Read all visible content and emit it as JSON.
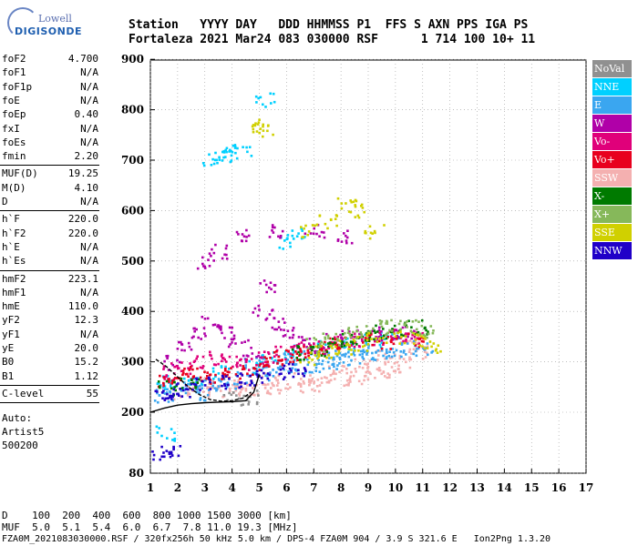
{
  "logo": {
    "brand": "Lowell",
    "product": "DIGISONDE"
  },
  "header": {
    "line1": "Station   YYYY DAY   DDD HHMMSS P1  FFS S AXN PPS IGA PS",
    "line2": "Fortaleza 2021 Mar24 083 030000 RSF      1 714 100 10+ 11"
  },
  "params_group1": [
    {
      "name": "foF2",
      "value": "4.700"
    },
    {
      "name": "foF1",
      "value": "N/A"
    },
    {
      "name": "foF1p",
      "value": "N/A"
    },
    {
      "name": "foE",
      "value": "N/A"
    },
    {
      "name": "foEp",
      "value": "0.40"
    },
    {
      "name": "fxI",
      "value": "N/A"
    },
    {
      "name": "foEs",
      "value": "N/A"
    },
    {
      "name": "fmin",
      "value": "2.20"
    }
  ],
  "params_group2": [
    {
      "name": "MUF(D)",
      "value": "19.25"
    },
    {
      "name": "M(D)",
      "value": "4.10"
    },
    {
      "name": "D",
      "value": "N/A"
    }
  ],
  "params_group3": [
    {
      "name": "h`F",
      "value": "220.0"
    },
    {
      "name": "h`F2",
      "value": "220.0"
    },
    {
      "name": "h`E",
      "value": "N/A"
    },
    {
      "name": "h`Es",
      "value": "N/A"
    }
  ],
  "params_group4": [
    {
      "name": "hmF2",
      "value": "223.1"
    },
    {
      "name": "hmF1",
      "value": "N/A"
    },
    {
      "name": "hmE",
      "value": "110.0"
    },
    {
      "name": "yF2",
      "value": "12.3"
    },
    {
      "name": "yF1",
      "value": "N/A"
    },
    {
      "name": "yE",
      "value": "20.0"
    },
    {
      "name": "B0",
      "value": "15.2"
    },
    {
      "name": "B1",
      "value": "1.12"
    }
  ],
  "params_group5": [
    {
      "name": "C-level",
      "value": "55"
    }
  ],
  "autoscaling": {
    "line1": "Auto:",
    "line2": "Artist5",
    "line3": "500200"
  },
  "legend": [
    {
      "label": "NoVal",
      "color": "#909090"
    },
    {
      "label": "NNE",
      "color": "#00d0ff"
    },
    {
      "label": "E",
      "color": "#3aa6f0"
    },
    {
      "label": "W",
      "color": "#b000a8"
    },
    {
      "label": "Vo-",
      "color": "#e0007a"
    },
    {
      "label": "Vo+",
      "color": "#e8001e"
    },
    {
      "label": "SSW",
      "color": "#f4b0b0"
    },
    {
      "label": "X-",
      "color": "#007a00"
    },
    {
      "label": "X+",
      "color": "#86b85a"
    },
    {
      "label": "SSE",
      "color": "#d0d000"
    },
    {
      "label": "NNW",
      "color": "#2000c8"
    }
  ],
  "footer": {
    "d_line": "D    100  200  400  600  800 1000 1500 3000 [km]",
    "muf_line": "MUF  5.0  5.1  5.4  6.0  6.7  7.8 11.0 19.3 [MHz]",
    "file_line": "FZA0M_2021083030000.RSF / 320fx256h 50 kHz 5.0 km / DPS-4 FZA0M 904 / 3.9 S 321.6 E   Ion2Png 1.3.20"
  },
  "chart_data": {
    "type": "scatter",
    "title": "",
    "xlabel": "",
    "ylabel": "",
    "xlim": [
      1,
      17
    ],
    "ylim": [
      80,
      900
    ],
    "x_ticks": [
      "1",
      "2",
      "3",
      "4",
      "5",
      "6",
      "7",
      "8",
      "9",
      "10",
      "11",
      "12",
      "13",
      "14",
      "15",
      "16",
      "17"
    ],
    "y_ticks": [
      "80",
      "200",
      "300",
      "400",
      "500",
      "600",
      "700",
      "800",
      "900"
    ],
    "y_tick_values": [
      80,
      200,
      300,
      400,
      500,
      600,
      700,
      800,
      900
    ],
    "grid": "dotted",
    "legend_position": "right",
    "series": [
      {
        "name": "SSW",
        "color": "#f4b0b0",
        "points": [
          [
            2.2,
            240
          ],
          [
            2.8,
            245
          ],
          [
            3.5,
            245
          ],
          [
            4.0,
            246
          ],
          [
            4.5,
            248
          ],
          [
            5.0,
            250
          ],
          [
            5.6,
            252
          ],
          [
            6.2,
            255
          ],
          [
            6.8,
            258
          ],
          [
            7.4,
            262
          ],
          [
            8.0,
            268
          ],
          [
            8.5,
            272
          ],
          [
            9.0,
            278
          ],
          [
            9.4,
            285
          ],
          [
            9.8,
            290
          ],
          [
            10.2,
            300
          ],
          [
            10.4,
            330
          ],
          [
            10.6,
            345
          ],
          [
            10.8,
            320
          ],
          [
            9.6,
            310
          ],
          [
            8.8,
            295
          ],
          [
            7.8,
            280
          ],
          [
            6.6,
            270
          ],
          [
            5.4,
            265
          ],
          [
            4.2,
            258
          ],
          [
            3.2,
            255
          ]
        ]
      },
      {
        "name": "E",
        "color": "#3aa6f0",
        "points": [
          [
            1.5,
            250
          ],
          [
            2.0,
            252
          ],
          [
            2.6,
            255
          ],
          [
            3.2,
            258
          ],
          [
            3.8,
            262
          ],
          [
            4.4,
            268
          ],
          [
            5.0,
            280
          ],
          [
            5.5,
            288
          ],
          [
            6.0,
            292
          ],
          [
            6.5,
            290
          ],
          [
            7.0,
            295
          ],
          [
            7.5,
            300
          ],
          [
            8.0,
            305
          ],
          [
            8.5,
            310
          ],
          [
            9.0,
            312
          ],
          [
            9.5,
            318
          ],
          [
            10.0,
            322
          ],
          [
            10.5,
            325
          ],
          [
            11.0,
            330
          ],
          [
            4.8,
            300
          ],
          [
            5.8,
            305
          ],
          [
            6.8,
            310
          ],
          [
            7.8,
            320
          ],
          [
            8.8,
            330
          ],
          [
            1.5,
            232
          ],
          [
            3.0,
            240
          ]
        ]
      },
      {
        "name": "NNE",
        "color": "#00d0ff",
        "points": [
          [
            1.6,
            260
          ],
          [
            2.5,
            270
          ],
          [
            3.6,
            280
          ],
          [
            4.6,
            290
          ],
          [
            5.2,
            310
          ],
          [
            6.2,
            320
          ],
          [
            7.2,
            330
          ],
          [
            8.2,
            340
          ],
          [
            9.2,
            345
          ],
          [
            9.8,
            350
          ],
          [
            3.2,
            705
          ],
          [
            3.6,
            712
          ],
          [
            4.0,
            718
          ],
          [
            4.3,
            725
          ],
          [
            5.2,
            820
          ],
          [
            6.0,
            540
          ],
          [
            6.3,
            560
          ],
          [
            1.5,
            160
          ]
        ]
      },
      {
        "name": "W",
        "color": "#b000a8",
        "points": [
          [
            1.8,
            300
          ],
          [
            2.3,
            330
          ],
          [
            2.8,
            360
          ],
          [
            3.2,
            380
          ],
          [
            3.7,
            360
          ],
          [
            4.2,
            340
          ],
          [
            4.7,
            320
          ],
          [
            5.1,
            400
          ],
          [
            5.3,
            450
          ],
          [
            5.6,
            380
          ],
          [
            6.1,
            360
          ],
          [
            6.6,
            340
          ],
          [
            7.1,
            330
          ],
          [
            7.7,
            345
          ],
          [
            8.3,
            350
          ],
          [
            9.1,
            355
          ],
          [
            9.7,
            360
          ],
          [
            10.3,
            360
          ],
          [
            3.0,
            500
          ],
          [
            3.5,
            520
          ],
          [
            4.5,
            550
          ],
          [
            5.5,
            560
          ],
          [
            7.0,
            560
          ],
          [
            8.0,
            550
          ]
        ]
      },
      {
        "name": "Vo-",
        "color": "#e0007a",
        "points": [
          [
            1.7,
            280
          ],
          [
            2.1,
            290
          ],
          [
            2.7,
            300
          ],
          [
            3.3,
            310
          ],
          [
            3.9,
            300
          ],
          [
            4.5,
            295
          ],
          [
            5.2,
            310
          ],
          [
            5.9,
            320
          ],
          [
            6.7,
            330
          ],
          [
            7.5,
            340
          ],
          [
            8.4,
            345
          ],
          [
            9.2,
            350
          ],
          [
            10.1,
            355
          ],
          [
            10.6,
            350
          ]
        ]
      },
      {
        "name": "Vo+",
        "color": "#e8001e",
        "points": [
          [
            1.6,
            260
          ],
          [
            2.0,
            270
          ],
          [
            2.5,
            280
          ],
          [
            3.0,
            275
          ],
          [
            3.5,
            270
          ],
          [
            4.0,
            285
          ],
          [
            4.5,
            280
          ],
          [
            5.0,
            300
          ],
          [
            5.5,
            310
          ],
          [
            6.0,
            315
          ],
          [
            6.5,
            320
          ],
          [
            7.0,
            330
          ],
          [
            7.5,
            335
          ],
          [
            8.0,
            340
          ],
          [
            9.0,
            345
          ],
          [
            9.8,
            340
          ],
          [
            10.8,
            345
          ]
        ]
      },
      {
        "name": "X-",
        "color": "#007a00",
        "points": [
          [
            6.5,
            320
          ],
          [
            7.2,
            325
          ],
          [
            7.8,
            335
          ],
          [
            8.3,
            345
          ],
          [
            8.8,
            350
          ],
          [
            9.3,
            360
          ],
          [
            10.0,
            365
          ],
          [
            10.8,
            370
          ],
          [
            1.6,
            250
          ],
          [
            2.4,
            255
          ]
        ]
      },
      {
        "name": "X+",
        "color": "#86b85a",
        "points": [
          [
            7.0,
            335
          ],
          [
            7.6,
            345
          ],
          [
            8.2,
            355
          ],
          [
            8.7,
            362
          ],
          [
            9.3,
            370
          ],
          [
            9.9,
            372
          ],
          [
            10.6,
            375
          ],
          [
            11.2,
            360
          ]
        ]
      },
      {
        "name": "SSE",
        "color": "#d0d000",
        "points": [
          [
            6.8,
            310
          ],
          [
            7.4,
            320
          ],
          [
            8.0,
            330
          ],
          [
            8.6,
            338
          ],
          [
            9.2,
            345
          ],
          [
            10.0,
            350
          ],
          [
            10.8,
            345
          ],
          [
            11.3,
            330
          ],
          [
            4.9,
            770
          ],
          [
            5.1,
            760
          ],
          [
            6.8,
            560
          ],
          [
            7.5,
            580
          ],
          [
            8.2,
            620
          ],
          [
            8.5,
            600
          ],
          [
            9.2,
            560
          ]
        ]
      },
      {
        "name": "NNW",
        "color": "#2000c8",
        "points": [
          [
            1.5,
            235
          ],
          [
            1.8,
            240
          ],
          [
            2.2,
            245
          ],
          [
            2.8,
            255
          ],
          [
            3.4,
            260
          ],
          [
            4.0,
            265
          ],
          [
            4.6,
            270
          ],
          [
            5.2,
            275
          ],
          [
            5.8,
            280
          ],
          [
            6.4,
            285
          ],
          [
            1.4,
            120
          ],
          [
            1.7,
            125
          ]
        ]
      },
      {
        "name": "NoVal",
        "color": "#909090",
        "points": [
          [
            4.0,
            230
          ],
          [
            4.6,
            232
          ]
        ]
      }
    ],
    "traces": [
      {
        "name": "virtual-height-trace",
        "color": "#000000",
        "points": [
          [
            1.0,
            200
          ],
          [
            1.5,
            208
          ],
          [
            2.0,
            214
          ],
          [
            2.5,
            217
          ],
          [
            3.0,
            219
          ],
          [
            3.5,
            220
          ],
          [
            4.0,
            221
          ],
          [
            4.5,
            223
          ],
          [
            4.8,
            240
          ],
          [
            5.0,
            275
          ]
        ]
      },
      {
        "name": "lower-trace",
        "color": "#000000",
        "points": [
          [
            1.2,
            305
          ],
          [
            1.6,
            290
          ],
          [
            2.0,
            270
          ],
          [
            2.4,
            250
          ],
          [
            2.8,
            235
          ],
          [
            3.2,
            225
          ],
          [
            3.6,
            222
          ],
          [
            4.0,
            223
          ],
          [
            4.4,
            228
          ],
          [
            4.7,
            240
          ]
        ]
      }
    ]
  }
}
